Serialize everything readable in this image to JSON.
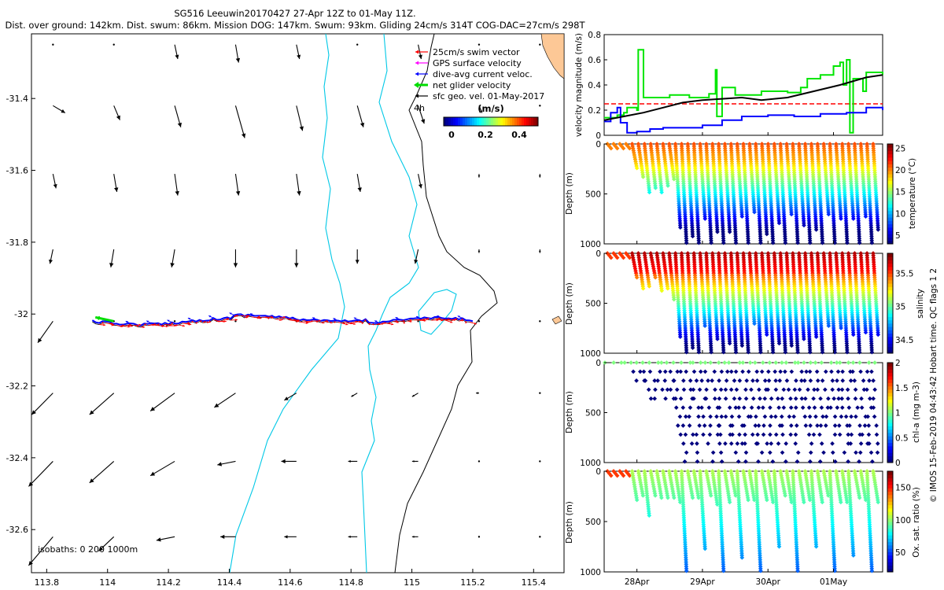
{
  "header": {
    "line1": "SG516 Leeuwin20170427 27-Apr 12Z to 01-May 11Z.",
    "line2": "Dist. over ground: 142km. Dist. swum: 86km. Mission DOG: 147km. Swum: 93km. Gliding 24cm/s 314T COG-DAC=27cm/s 298T"
  },
  "footer": {
    "credit": "© IMOS 15-Feb-2019 04:43:42 Hobart time. QC flags 1  2"
  },
  "colors": {
    "swim": "#ff0000",
    "gps": "#ff00ff",
    "dac": "#0000ff",
    "net": "#00dd00",
    "coast": "#000000",
    "isobath": "#00c8e6",
    "land": "#fdc896"
  },
  "chart_data": [
    {
      "type": "scatter",
      "name": "track-map",
      "xlim": [
        113.75,
        115.5
      ],
      "ylim": [
        -32.72,
        -31.22
      ],
      "xticks": [
        "113.8",
        "114",
        "114.2",
        "114.4",
        "114.6",
        "114.8",
        "115",
        "115.2",
        "115.4"
      ],
      "yticks": [
        "-31.4",
        "-31.6",
        "-31.8",
        "-32",
        "-32.2",
        "-32.4",
        "-32.6"
      ],
      "legend": [
        {
          "key": "swim",
          "label": "25cm/s swim vector"
        },
        {
          "key": "gps",
          "label": "GPS surface velocity"
        },
        {
          "key": "dac",
          "label": "dive-avg current veloc."
        },
        {
          "key": "net",
          "label": "net glider velocity"
        },
        {
          "key": "coast",
          "label": "sfc geo. vel. 01-May-2017"
        }
      ],
      "legend_tag": "4h",
      "colorbar": {
        "title": "(m/s)",
        "ticks": [
          "0",
          "0.2",
          "0.4"
        ],
        "range": [
          0,
          0.5
        ]
      },
      "isobath_label": "isobaths: 0   200  1000m",
      "track_lat": -32.02,
      "track_lon_start": 113.95,
      "track_lon_end": 115.2,
      "arrow_grid_lons": [
        113.8,
        114.0,
        114.2,
        114.4,
        114.6,
        114.8,
        115.0,
        115.2,
        115.4
      ],
      "arrow_grid_lats": [
        -31.25,
        -31.42,
        -31.61,
        -31.82,
        -32.02,
        -32.22,
        -32.41,
        -32.62
      ],
      "currents_dlon_dlat": [
        [
          [
            0,
            0
          ],
          [
            0,
            0
          ],
          [
            0.01,
            -0.04
          ],
          [
            0.01,
            -0.05
          ],
          [
            0.01,
            -0.04
          ],
          [
            0,
            0
          ],
          [
            0.01,
            -0.04
          ],
          [
            0,
            0
          ],
          [
            0,
            0
          ]
        ],
        [
          [
            0.04,
            -0.02
          ],
          [
            0.02,
            -0.04
          ],
          [
            0.02,
            -0.06
          ],
          [
            0.03,
            -0.09
          ],
          [
            0.02,
            -0.07
          ],
          [
            0.02,
            -0.06
          ],
          [
            0.02,
            -0.05
          ],
          [
            0.01,
            -0.02
          ],
          [
            0,
            0
          ]
        ],
        [
          [
            0.01,
            -0.04
          ],
          [
            0.01,
            -0.05
          ],
          [
            0.01,
            -0.06
          ],
          [
            0.01,
            -0.06
          ],
          [
            0.01,
            -0.06
          ],
          [
            0.01,
            -0.05
          ],
          [
            0.01,
            -0.04
          ],
          [
            0,
            -0.01
          ],
          [
            0,
            -0.01
          ]
        ],
        [
          [
            -0.01,
            -0.04
          ],
          [
            -0.01,
            -0.05
          ],
          [
            -0.01,
            -0.05
          ],
          [
            0,
            -0.05
          ],
          [
            0,
            -0.05
          ],
          [
            0,
            -0.04
          ],
          [
            -0.01,
            -0.04
          ],
          [
            0,
            -0.01
          ],
          [
            0,
            -0.01
          ]
        ],
        [
          [
            -0.05,
            -0.06
          ],
          [
            0,
            0
          ],
          [
            0,
            0
          ],
          [
            0,
            0
          ],
          [
            0,
            0
          ],
          [
            0,
            0
          ],
          [
            0,
            0
          ],
          [
            0,
            0
          ],
          [
            0,
            0
          ]
        ],
        [
          [
            -0.07,
            -0.06
          ],
          [
            -0.08,
            -0.06
          ],
          [
            -0.08,
            -0.05
          ],
          [
            -0.07,
            -0.04
          ],
          [
            -0.04,
            -0.02
          ],
          [
            -0.02,
            -0.01
          ],
          [
            -0.02,
            -0.01
          ],
          [
            -0.01,
            0
          ],
          [
            0,
            0
          ]
        ],
        [
          [
            -0.08,
            -0.07
          ],
          [
            -0.08,
            -0.06
          ],
          [
            -0.08,
            -0.04
          ],
          [
            -0.06,
            -0.01
          ],
          [
            -0.05,
            0
          ],
          [
            -0.03,
            0
          ],
          [
            -0.02,
            0
          ],
          [
            0,
            0
          ],
          [
            0,
            0
          ]
        ],
        [
          [
            -0.08,
            -0.08
          ],
          [
            -0.05,
            -0.04
          ],
          [
            -0.06,
            -0.01
          ],
          [
            -0.05,
            0
          ],
          [
            -0.04,
            0
          ],
          [
            -0.03,
            0
          ],
          [
            -0.02,
            0
          ],
          [
            0,
            0
          ],
          [
            0,
            0
          ]
        ]
      ]
    },
    {
      "type": "line",
      "name": "velocity-magnitude",
      "ylabel": "velocity magnitude (m/s)",
      "xlim": [
        0,
        4.25
      ],
      "ylim": [
        0,
        0.8
      ],
      "yticks": [
        "0",
        "0.2",
        "0.4",
        "0.6",
        "0.8"
      ],
      "threshold": 0.25,
      "series": [
        {
          "name": "net glider velocity",
          "color": "#00e600",
          "x": [
            0,
            0.2,
            0.3,
            0.35,
            0.5,
            0.52,
            0.6,
            0.75,
            1.0,
            1.3,
            1.6,
            1.7,
            1.72,
            1.8,
            2.0,
            2.4,
            2.8,
            3.0,
            3.1,
            3.3,
            3.5,
            3.6,
            3.65,
            3.7,
            3.75,
            3.8,
            3.95,
            4.0,
            4.25
          ],
          "y": [
            0.14,
            0.16,
            0.18,
            0.22,
            0.2,
            0.68,
            0.3,
            0.3,
            0.32,
            0.3,
            0.33,
            0.52,
            0.15,
            0.38,
            0.32,
            0.35,
            0.34,
            0.38,
            0.45,
            0.48,
            0.55,
            0.58,
            0.4,
            0.6,
            0.02,
            0.45,
            0.35,
            0.5,
            0.48
          ]
        },
        {
          "name": "dive-avg current",
          "color": "#0000ff",
          "x": [
            0,
            0.1,
            0.2,
            0.25,
            0.35,
            0.5,
            0.7,
            0.9,
            1.2,
            1.5,
            1.8,
            2.1,
            2.5,
            2.9,
            3.3,
            3.7,
            4.0,
            4.25
          ],
          "y": [
            0.11,
            0.18,
            0.22,
            0.1,
            0.02,
            0.03,
            0.05,
            0.06,
            0.06,
            0.08,
            0.12,
            0.15,
            0.16,
            0.15,
            0.17,
            0.18,
            0.22,
            0.2
          ]
        },
        {
          "name": "sfc geo. vel.",
          "color": "#000000",
          "x": [
            0,
            0.3,
            0.6,
            0.9,
            1.2,
            1.5,
            1.8,
            2.1,
            2.4,
            2.8,
            3.2,
            3.6,
            4.0,
            4.25
          ],
          "y": [
            0.12,
            0.15,
            0.18,
            0.22,
            0.26,
            0.28,
            0.29,
            0.3,
            0.28,
            0.3,
            0.35,
            0.4,
            0.46,
            0.48
          ]
        }
      ]
    },
    {
      "type": "scatter",
      "name": "temperature-section",
      "ylabel": "Depth (m)",
      "cbar_label": "temperature (°C)",
      "yticks": [
        "0",
        "500",
        "1000"
      ],
      "ylim": [
        0,
        1000
      ],
      "cticks": [
        "5",
        "10",
        "15",
        "20",
        "25"
      ],
      "crange": [
        3,
        26
      ]
    },
    {
      "type": "scatter",
      "name": "salinity-section",
      "ylabel": "Depth (m)",
      "cbar_label": "salinity",
      "yticks": [
        "0",
        "500",
        "1000"
      ],
      "ylim": [
        0,
        1000
      ],
      "cticks": [
        "34.5",
        "35",
        "35.5"
      ],
      "crange": [
        34.3,
        35.8
      ]
    },
    {
      "type": "scatter",
      "name": "chla-section",
      "ylabel": "Depth (m)",
      "cbar_label": "chl-a (mg m-3)",
      "yticks": [
        "0",
        "500",
        "1000"
      ],
      "ylim": [
        0,
        1000
      ],
      "cticks": [
        "0",
        "0.5",
        "1",
        "1.5",
        "2"
      ],
      "crange": [
        0,
        2
      ]
    },
    {
      "type": "scatter",
      "name": "oxygen-section",
      "ylabel": "Depth (m)",
      "cbar_label": "Ox. sat. ratio (%)",
      "yticks": [
        "0",
        "500",
        "1000"
      ],
      "ylim": [
        0,
        1000
      ],
      "cticks": [
        "50",
        "100",
        "150"
      ],
      "crange": [
        20,
        175
      ]
    }
  ],
  "time_axis": {
    "ticks": [
      "28Apr",
      "29Apr",
      "30Apr",
      "01May"
    ],
    "tick_days": [
      0.5,
      1.5,
      2.5,
      3.5
    ],
    "xlim": [
      0,
      4.25
    ]
  }
}
